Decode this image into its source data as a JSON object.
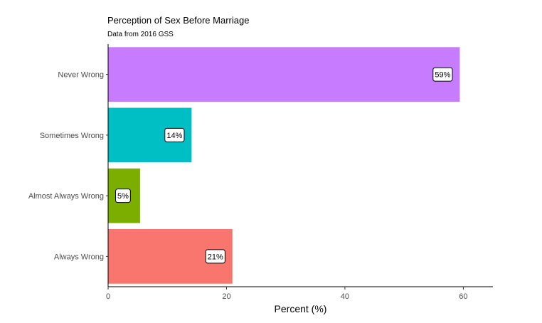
{
  "chart_data": {
    "type": "bar",
    "orientation": "horizontal",
    "title": "Perception of Sex Before Marriage",
    "subtitle": "Data from 2016 GSS",
    "xlabel": "Percent (%)",
    "ylabel": "",
    "xlim": [
      0,
      65
    ],
    "x_ticks": [
      0,
      20,
      40,
      60
    ],
    "grid": false,
    "legend": "none",
    "categories": [
      "Always Wrong",
      "Almost Always Wrong",
      "Sometimes Wrong",
      "Never Wrong"
    ],
    "values": [
      21,
      5.4,
      14.1,
      59.4
    ],
    "data_labels": [
      "21%",
      "5%",
      "14%",
      "59%"
    ],
    "colors": [
      "#F8766D",
      "#7CAE00",
      "#00BFC4",
      "#C77CFF"
    ]
  }
}
